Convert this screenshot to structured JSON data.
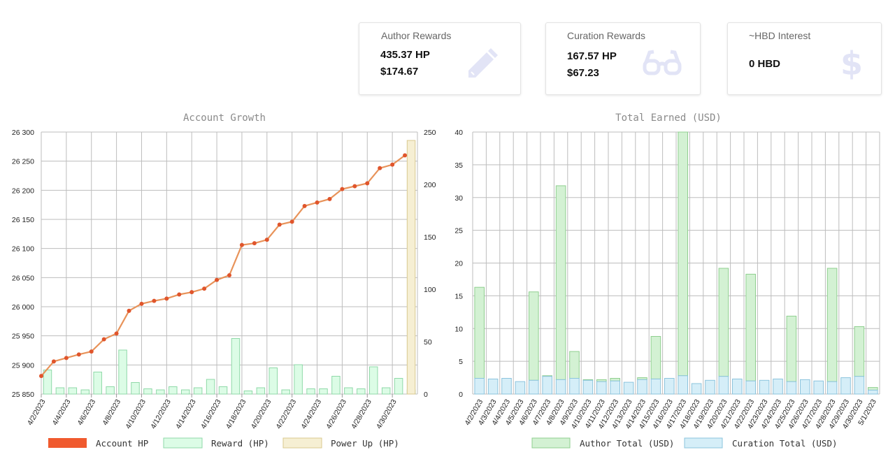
{
  "cards": [
    {
      "title": "Author Rewards",
      "lines": [
        "435.37 HP",
        "$174.67"
      ],
      "icon": "pencil-icon"
    },
    {
      "title": "Curation Rewards",
      "lines": [
        "167.57 HP",
        "$67.23"
      ],
      "icon": "glasses-icon"
    },
    {
      "title": "~HBD Interest",
      "lines": [
        "0 HBD"
      ],
      "icon": "dollar-icon"
    }
  ],
  "colors": {
    "account_line": "#e8935a",
    "account_point": "#e0552c",
    "account_legend": "#f05a2e",
    "reward_fill": "#dcfce6",
    "reward_stroke": "#8fd9a8",
    "powerup_fill": "#f6efd3",
    "powerup_stroke": "#d9c98f",
    "author_fill": "#d3f1d3",
    "author_stroke": "#8fcf8f",
    "curation_fill": "#d5eef8",
    "curation_stroke": "#8cc4dd",
    "icon": "#e2e4f6"
  },
  "chart_data": [
    {
      "type": "line",
      "title": "Account Growth",
      "categories": [
        "4/2/2023",
        "4/3/2023",
        "4/4/2023",
        "4/5/2023",
        "4/6/2023",
        "4/7/2023",
        "4/8/2023",
        "4/9/2023",
        "4/10/2023",
        "4/11/2023",
        "4/12/2023",
        "4/13/2023",
        "4/14/2023",
        "4/15/2023",
        "4/16/2023",
        "4/17/2023",
        "4/18/2023",
        "4/19/2023",
        "4/20/2023",
        "4/21/2023",
        "4/22/2023",
        "4/23/2023",
        "4/24/2023",
        "4/25/2023",
        "4/26/2023",
        "4/27/2023",
        "4/28/2023",
        "4/29/2023",
        "4/30/2023",
        "5/1/2023"
      ],
      "x_tick_labels": [
        "4/2/2023",
        "4/4/2023",
        "4/6/2023",
        "4/8/2023",
        "4/10/2023",
        "4/12/2023",
        "4/14/2023",
        "4/16/2023",
        "4/18/2023",
        "4/20/2023",
        "4/22/2023",
        "4/24/2023",
        "4/26/2023",
        "4/28/2023",
        "4/30/2023"
      ],
      "y_left": {
        "min": 25850,
        "max": 26300,
        "step": 50,
        "tick_labels": [
          "25 850",
          "25 900",
          "25 950",
          "26 000",
          "26 050",
          "26 100",
          "26 150",
          "26 200",
          "26 250",
          "26 300"
        ]
      },
      "y_right": {
        "min": 0,
        "max": 250,
        "step": 50,
        "tick_labels": [
          "0",
          "50",
          "100",
          "150",
          "200",
          "250"
        ]
      },
      "grid": true,
      "legend_position": "bottom",
      "series": [
        {
          "name": "Account HP",
          "kind": "line",
          "axis": "left",
          "values": [
            25881,
            25906,
            25912,
            25918,
            25923,
            25944,
            25954,
            25993,
            26005,
            26010,
            26014,
            26021,
            26025,
            26031,
            26046,
            26054,
            26106,
            26109,
            26115,
            26141,
            26146,
            26173,
            26179,
            26185,
            26202,
            26207,
            26212,
            26238,
            26244,
            26260
          ]
        },
        {
          "name": "Reward (HP)",
          "kind": "bar",
          "axis": "right",
          "values": [
            23,
            6,
            6,
            4,
            21,
            7,
            42,
            11,
            5,
            4,
            7,
            4,
            6,
            14,
            7,
            53,
            3,
            6,
            25,
            4,
            28,
            5,
            5,
            17,
            6,
            5,
            26,
            6,
            15,
            4
          ]
        },
        {
          "name": "Power Up (HP)",
          "kind": "bar",
          "axis": "right",
          "values": [
            0,
            0,
            0,
            0,
            0,
            0,
            0,
            0,
            0,
            0,
            0,
            0,
            0,
            0,
            0,
            0,
            0,
            0,
            0,
            0,
            0,
            0,
            0,
            0,
            0,
            0,
            0,
            0,
            0,
            242
          ]
        }
      ]
    },
    {
      "type": "bar",
      "stacked": true,
      "title": "Total Earned (USD)",
      "categories": [
        "4/2/2023",
        "4/3/2023",
        "4/4/2023",
        "4/5/2023",
        "4/6/2023",
        "4/7/2023",
        "4/8/2023",
        "4/9/2023",
        "4/10/2023",
        "4/11/2023",
        "4/12/2023",
        "4/13/2023",
        "4/14/2023",
        "4/15/2023",
        "4/16/2023",
        "4/17/2023",
        "4/18/2023",
        "4/19/2023",
        "4/20/2023",
        "4/21/2023",
        "4/22/2023",
        "4/23/2023",
        "4/24/2023",
        "4/25/2023",
        "4/26/2023",
        "4/27/2023",
        "4/28/2023",
        "4/29/2023",
        "4/30/2023",
        "5/1/2023"
      ],
      "y": {
        "min": 0,
        "max": 40,
        "step": 5,
        "tick_labels": [
          "0",
          "5",
          "10",
          "15",
          "20",
          "25",
          "30",
          "35",
          "40"
        ]
      },
      "grid": true,
      "legend_position": "bottom",
      "series": [
        {
          "name": "Author Total (USD)",
          "values": [
            13.9,
            0,
            0,
            0,
            13.5,
            0.1,
            29.6,
            4.1,
            0.1,
            0.3,
            0.4,
            0,
            0.3,
            6.5,
            0,
            37.2,
            0,
            0,
            16.5,
            0,
            16.3,
            0,
            0,
            10,
            0,
            0,
            17.3,
            0,
            7.6,
            0.4
          ]
        },
        {
          "name": "Curation Total (USD)",
          "values": [
            2.4,
            2.3,
            2.4,
            1.9,
            2.1,
            2.7,
            2.2,
            2.4,
            2.1,
            1.9,
            2,
            1.8,
            2.2,
            2.3,
            2.4,
            2.8,
            1.6,
            2.1,
            2.7,
            2.3,
            2,
            2.1,
            2.3,
            1.9,
            2.2,
            2,
            1.9,
            2.5,
            2.7,
            0.6
          ]
        }
      ]
    }
  ]
}
